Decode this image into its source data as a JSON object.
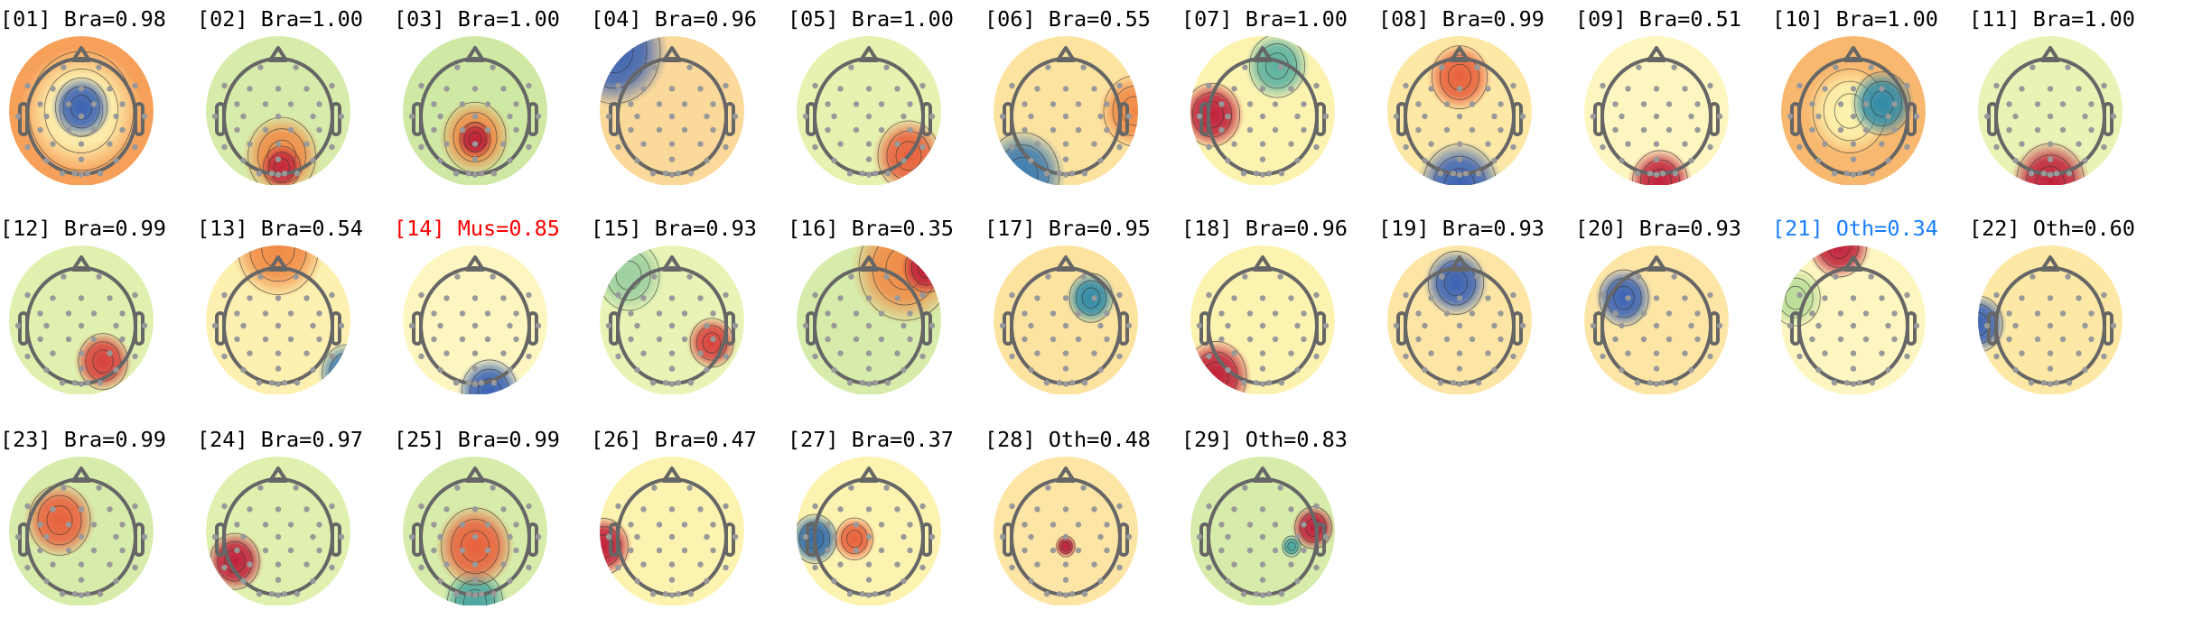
{
  "chart_data": {
    "type": "topomap",
    "colormap": [
      "#c0203a",
      "#f08a45",
      "#fdf5b0",
      "#c8e6a0",
      "#4aa6a0",
      "#3a62b4"
    ],
    "label_colors": {
      "default": "#000000",
      "muscle": "#ff0000",
      "other_highlight": "#1a7fff"
    },
    "components": [
      {
        "id": "01",
        "label": "[01] Bra=0.98",
        "class": "Bra",
        "score": 0.98,
        "color": "#000000"
      },
      {
        "id": "02",
        "label": "[02] Bra=1.00",
        "class": "Bra",
        "score": 1.0,
        "color": "#000000"
      },
      {
        "id": "03",
        "label": "[03] Bra=1.00",
        "class": "Bra",
        "score": 1.0,
        "color": "#000000"
      },
      {
        "id": "04",
        "label": "[04] Bra=0.96",
        "class": "Bra",
        "score": 0.96,
        "color": "#000000"
      },
      {
        "id": "05",
        "label": "[05] Bra=1.00",
        "class": "Bra",
        "score": 1.0,
        "color": "#000000"
      },
      {
        "id": "06",
        "label": "[06] Bra=0.55",
        "class": "Bra",
        "score": 0.55,
        "color": "#000000"
      },
      {
        "id": "07",
        "label": "[07] Bra=1.00",
        "class": "Bra",
        "score": 1.0,
        "color": "#000000"
      },
      {
        "id": "08",
        "label": "[08] Bra=0.99",
        "class": "Bra",
        "score": 0.99,
        "color": "#000000"
      },
      {
        "id": "09",
        "label": "[09] Bra=0.51",
        "class": "Bra",
        "score": 0.51,
        "color": "#000000"
      },
      {
        "id": "10",
        "label": "[10] Bra=1.00",
        "class": "Bra",
        "score": 1.0,
        "color": "#000000"
      },
      {
        "id": "11",
        "label": "[11] Bra=1.00",
        "class": "Bra",
        "score": 1.0,
        "color": "#000000"
      },
      {
        "id": "12",
        "label": "[12] Bra=0.99",
        "class": "Bra",
        "score": 0.99,
        "color": "#000000"
      },
      {
        "id": "13",
        "label": "[13] Bra=0.54",
        "class": "Bra",
        "score": 0.54,
        "color": "#000000"
      },
      {
        "id": "14",
        "label": "[14] Mus=0.85",
        "class": "Mus",
        "score": 0.85,
        "color": "#ff0000"
      },
      {
        "id": "15",
        "label": "[15] Bra=0.93",
        "class": "Bra",
        "score": 0.93,
        "color": "#000000"
      },
      {
        "id": "16",
        "label": "[16] Bra=0.35",
        "class": "Bra",
        "score": 0.35,
        "color": "#000000"
      },
      {
        "id": "17",
        "label": "[17] Bra=0.95",
        "class": "Bra",
        "score": 0.95,
        "color": "#000000"
      },
      {
        "id": "18",
        "label": "[18] Bra=0.96",
        "class": "Bra",
        "score": 0.96,
        "color": "#000000"
      },
      {
        "id": "19",
        "label": "[19] Bra=0.93",
        "class": "Bra",
        "score": 0.93,
        "color": "#000000"
      },
      {
        "id": "20",
        "label": "[20] Bra=0.93",
        "class": "Bra",
        "score": 0.93,
        "color": "#000000"
      },
      {
        "id": "21",
        "label": "[21] Oth=0.34",
        "class": "Oth",
        "score": 0.34,
        "color": "#1a7fff"
      },
      {
        "id": "22",
        "label": "[22] Oth=0.60",
        "class": "Oth",
        "score": 0.6,
        "color": "#000000"
      },
      {
        "id": "23",
        "label": "[23] Bra=0.99",
        "class": "Bra",
        "score": 0.99,
        "color": "#000000"
      },
      {
        "id": "24",
        "label": "[24] Bra=0.97",
        "class": "Bra",
        "score": 0.97,
        "color": "#000000"
      },
      {
        "id": "25",
        "label": "[25] Bra=0.99",
        "class": "Bra",
        "score": 0.99,
        "color": "#000000"
      },
      {
        "id": "26",
        "label": "[26] Bra=0.47",
        "class": "Bra",
        "score": 0.47,
        "color": "#000000"
      },
      {
        "id": "27",
        "label": "[27] Bra=0.37",
        "class": "Bra",
        "score": 0.37,
        "color": "#000000"
      },
      {
        "id": "28",
        "label": "[28] Oth=0.48",
        "class": "Oth",
        "score": 0.48,
        "color": "#000000"
      },
      {
        "id": "29",
        "label": "[29] Oth=0.83",
        "class": "Oth",
        "score": 0.83,
        "color": "#000000"
      }
    ]
  }
}
